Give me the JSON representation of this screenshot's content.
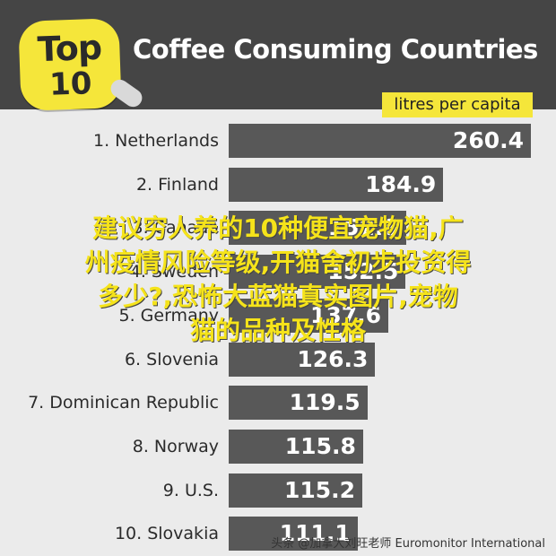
{
  "badge": {
    "line1": "Top",
    "line2": "10"
  },
  "title": "Coffee Consuming Countries",
  "unit_label": "litres per capita",
  "chart_data": {
    "type": "bar",
    "orientation": "horizontal",
    "title": "Coffee Consuming Countries",
    "value_label": "litres per capita",
    "categories": [
      "1. Netherlands",
      "2. Finland",
      "3. Canada",
      "4. Sweden",
      "5. Germany",
      "6. Slovenia",
      "7. Dominican Republic",
      "8. Norway",
      "9. U.S.",
      "10. Slovakia"
    ],
    "values": [
      260.4,
      184.9,
      152.8,
      152.5,
      137.6,
      126.3,
      119.5,
      115.8,
      115.2,
      111.1
    ],
    "value_labels": [
      "260.4",
      "184.9",
      "152.8",
      "152.5",
      "137.6",
      "126.3",
      "119.5",
      "115.8",
      "115.2",
      "111.1"
    ],
    "bar_color": "#585858",
    "accent_color": "#f5e63a"
  },
  "watermark": {
    "line1": "建议穷人养的10种便宜宠物猫,广",
    "line2": "州疫情风险等级,开猫舍初步投资得",
    "line3": "多少?,恐怖大蓝猫真实图片,宠物",
    "line4": "猫的品种及性格"
  },
  "source": "头条 @加拿大刘旺老师 Euromonitor International"
}
